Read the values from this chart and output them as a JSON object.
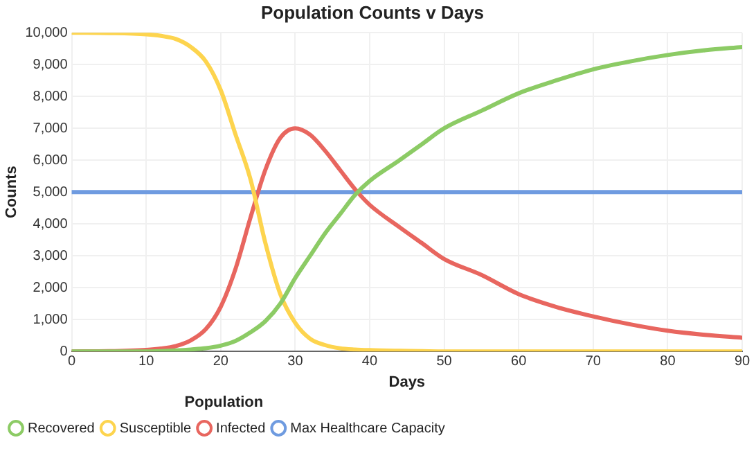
{
  "chart_data": {
    "type": "line",
    "title": "Population Counts v Days",
    "xlabel": "Days",
    "ylabel": "Counts",
    "legend_title": "Population",
    "legend": "bottom left",
    "grid": true,
    "marker": "none",
    "line_style": "solid",
    "x": [
      0,
      5,
      10,
      12,
      14,
      16,
      18,
      20,
      22,
      24,
      26,
      28,
      30,
      32,
      34,
      36,
      38,
      40,
      44,
      47,
      50,
      55,
      60,
      65,
      70,
      75,
      80,
      85,
      90
    ],
    "xlim": [
      0,
      90
    ],
    "xticks": [
      0,
      10,
      20,
      30,
      40,
      50,
      60,
      70,
      80,
      90
    ],
    "ylim": [
      0,
      10000
    ],
    "yticks": [
      {
        "value": 0,
        "label": "0"
      },
      {
        "value": 1000,
        "label": "1,000"
      },
      {
        "value": 2000,
        "label": "2,000"
      },
      {
        "value": 3000,
        "label": "3,000"
      },
      {
        "value": 4000,
        "label": "4,000"
      },
      {
        "value": 5000,
        "label": "5,000"
      },
      {
        "value": 6000,
        "label": "6,000"
      },
      {
        "value": 7000,
        "label": "7,000"
      },
      {
        "value": 8000,
        "label": "8,000"
      },
      {
        "value": 9000,
        "label": "9,000"
      },
      {
        "value": 10000,
        "label": "10,000"
      }
    ],
    "series": [
      {
        "name": "Recovered",
        "color": "#8ccb65",
        "values": [
          0,
          0,
          0,
          10,
          30,
          60,
          100,
          180,
          330,
          600,
          950,
          1500,
          2300,
          3000,
          3700,
          4300,
          4900,
          5350,
          6000,
          6500,
          7000,
          7550,
          8100,
          8500,
          8850,
          9100,
          9300,
          9450,
          9550
        ]
      },
      {
        "name": "Susceptible",
        "color": "#fdd44e",
        "values": [
          10000,
          9990,
          9950,
          9900,
          9800,
          9550,
          9100,
          8200,
          6800,
          5400,
          3400,
          1800,
          900,
          400,
          200,
          100,
          60,
          40,
          20,
          10,
          0,
          0,
          0,
          0,
          0,
          0,
          0,
          0,
          0
        ]
      },
      {
        "name": "Infected",
        "color": "#e8665f",
        "values": [
          0,
          10,
          50,
          90,
          170,
          350,
          700,
          1400,
          2600,
          4200,
          5700,
          6700,
          7000,
          6800,
          6300,
          5700,
          5100,
          4600,
          3900,
          3400,
          2900,
          2400,
          1800,
          1400,
          1100,
          850,
          650,
          520,
          430
        ]
      },
      {
        "name": "Max Healthcare Capacity",
        "color": "#6f9be0",
        "x": [
          0,
          90
        ],
        "values": [
          5000,
          5000
        ]
      }
    ]
  }
}
